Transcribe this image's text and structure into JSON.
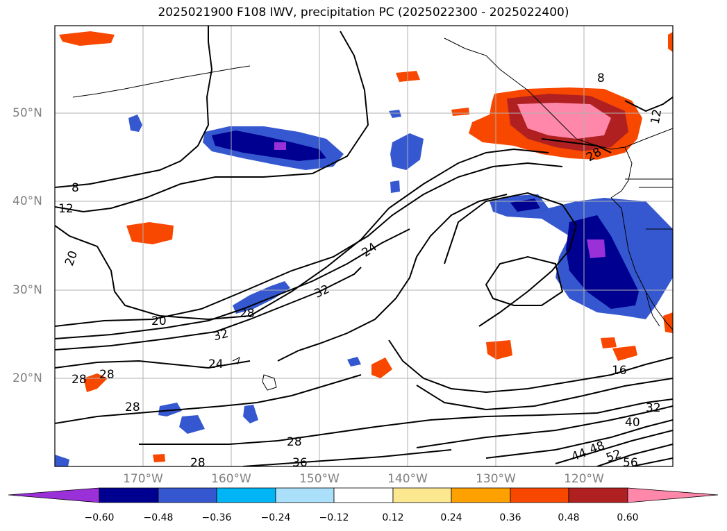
{
  "title": "2025021900 F108 IWV, precipitation PC (2025022300 - 2025022400)",
  "lat_labels": [
    "50°N",
    "40°N",
    "30°N",
    "20°N"
  ],
  "lon_labels": [
    "170°W",
    "160°W",
    "150°W",
    "140°W",
    "130°W",
    "120°W"
  ],
  "contour_labels": [
    "8",
    "8",
    "12",
    "20",
    "20",
    "24",
    "24",
    "28",
    "28",
    "28",
    "28",
    "28",
    "28",
    "32",
    "32",
    "32",
    "36",
    "40",
    "44",
    "48",
    "52",
    "56",
    "16",
    "12",
    "28"
  ],
  "colorbar": {
    "colors": [
      "#9a30d8",
      "#000090",
      "#3558d0",
      "#00b4f5",
      "#aae0fa",
      "#ffffff",
      "#fce890",
      "#fea000",
      "#f84800",
      "#b02020",
      "#ff88aa"
    ],
    "ticks": [
      "−0.60",
      "−0.48",
      "−0.36",
      "−0.24",
      "−0.12",
      "0.12",
      "0.24",
      "0.36",
      "0.48",
      "0.60"
    ]
  }
}
